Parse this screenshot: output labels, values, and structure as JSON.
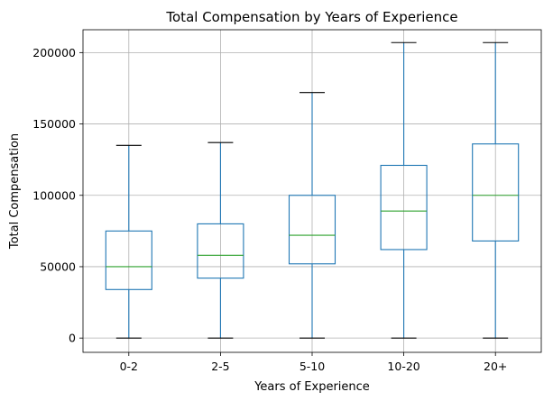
{
  "chart_data": {
    "type": "box",
    "title": "Total Compensation by Years of Experience",
    "xlabel": "Years of Experience",
    "ylabel": "Total Compensation",
    "ylim": [
      -10000,
      216000
    ],
    "yticks": [
      0,
      50000,
      100000,
      150000,
      200000
    ],
    "ytick_labels": [
      "0",
      "50000",
      "100000",
      "150000",
      "200000"
    ],
    "grid": true,
    "categories": [
      "0-2",
      "2-5",
      "5-10",
      "10-20",
      "20+"
    ],
    "boxes": [
      {
        "category": "0-2",
        "whisker_low": 0,
        "q1": 34000,
        "median": 50000,
        "q3": 75000,
        "whisker_high": 135000
      },
      {
        "category": "2-5",
        "whisker_low": 0,
        "q1": 42000,
        "median": 58000,
        "q3": 80000,
        "whisker_high": 137000
      },
      {
        "category": "5-10",
        "whisker_low": 0,
        "q1": 52000,
        "median": 72000,
        "q3": 100000,
        "whisker_high": 172000
      },
      {
        "category": "10-20",
        "whisker_low": 0,
        "q1": 62000,
        "median": 89000,
        "q3": 121000,
        "whisker_high": 207000
      },
      {
        "category": "20+",
        "whisker_low": 0,
        "q1": 68000,
        "median": 100000,
        "q3": 136000,
        "whisker_high": 207000
      }
    ],
    "colors": {
      "box": "#1f77b4",
      "whisker": "#1f77b4",
      "cap": "#000000",
      "median": "#2ca02c",
      "grid": "#b0b0b0"
    }
  }
}
